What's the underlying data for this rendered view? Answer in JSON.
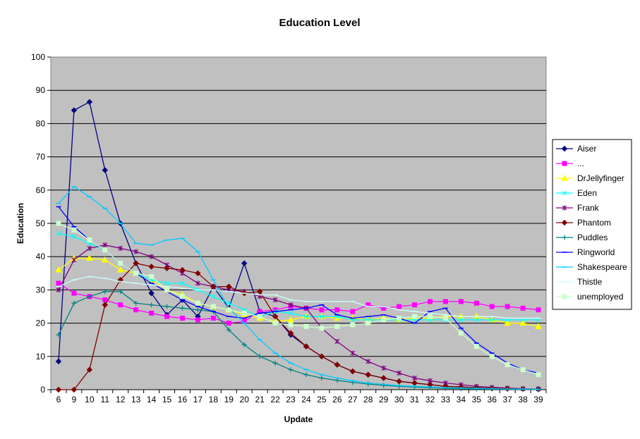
{
  "chart_data": {
    "type": "line",
    "title": "Education Level",
    "xlabel": "Update",
    "ylabel": "Education",
    "ylim": [
      0,
      100
    ],
    "yticks": [
      0,
      10,
      20,
      30,
      40,
      50,
      60,
      70,
      80,
      90,
      100
    ],
    "categories": [
      "6",
      "9",
      "10",
      "11",
      "12",
      "13",
      "14",
      "15",
      "16",
      "17",
      "18",
      "19",
      "20",
      "21",
      "22",
      "23",
      "24",
      "25",
      "26",
      "27",
      "28",
      "29",
      "30",
      "31",
      "32",
      "33",
      "34",
      "35",
      "36",
      "37",
      "38",
      "39"
    ],
    "grid": "horizontal",
    "legend_position": "right",
    "plot_background": "#c0c0c0",
    "series": [
      {
        "name": "Aiser",
        "color": "#000080",
        "marker": "diamond",
        "values": [
          8.5,
          84,
          86.5,
          66,
          50,
          38,
          29,
          22.5,
          27,
          22,
          31,
          24.5,
          38,
          23.5,
          22,
          16.5,
          13,
          10,
          7.5,
          5.5,
          4.5,
          3.5,
          2.5,
          2,
          1.5,
          1,
          0.8,
          0.6,
          0.4,
          0.3,
          0.2,
          0.2
        ]
      },
      {
        "name": "...",
        "color": "#ff00ff",
        "marker": "square",
        "values": [
          32,
          29,
          28,
          27,
          25.5,
          24,
          23,
          22,
          21.5,
          21,
          21.5,
          20,
          20.5,
          23.5,
          24,
          25,
          24.5,
          24,
          24,
          23.5,
          25.5,
          24.5,
          25,
          25.5,
          26.5,
          26.5,
          26.5,
          26,
          25,
          25,
          24.5,
          24
        ]
      },
      {
        "name": "DrJellyfinger",
        "color": "#ffff00",
        "marker": "triangle",
        "values": [
          36,
          39.5,
          39.5,
          39,
          36,
          35,
          33,
          30,
          28.5,
          26,
          25,
          24,
          22.5,
          21.5,
          20.5,
          21,
          22,
          22,
          21.5,
          21.5,
          21,
          21.5,
          21,
          21.5,
          21.5,
          22,
          22,
          22,
          21,
          20,
          20,
          19
        ]
      },
      {
        "name": "Eden",
        "color": "#00ffff",
        "marker": "x",
        "values": [
          47,
          46,
          44,
          42,
          38,
          35,
          33,
          32,
          32,
          30,
          28,
          26,
          24,
          22,
          23.5,
          23,
          22,
          22,
          22,
          21,
          21,
          21,
          21,
          21,
          21,
          21,
          21,
          21,
          21,
          21,
          21,
          21
        ]
      },
      {
        "name": "Frank",
        "color": "#800080",
        "marker": "star",
        "values": [
          30,
          39,
          42.5,
          43.5,
          42.5,
          41.5,
          40,
          37.5,
          35,
          32,
          31,
          30,
          29.5,
          28,
          27,
          25.5,
          24.5,
          18.5,
          14.5,
          11,
          8.5,
          6.5,
          5,
          3.5,
          2.7,
          2,
          1.5,
          1,
          0.7,
          0.5,
          0.3,
          0.2
        ]
      },
      {
        "name": "Phantom",
        "color": "#800000",
        "marker": "diamond",
        "values": [
          0,
          0,
          6,
          25.5,
          33,
          38,
          37,
          36.5,
          36,
          35,
          31,
          31,
          29,
          29.5,
          22,
          17,
          13,
          10,
          7.5,
          5.5,
          4.5,
          3.5,
          2.5,
          2,
          1.5,
          1,
          0.8,
          0.6,
          0.4,
          0.3,
          0.2,
          0.1
        ]
      },
      {
        "name": "Puddles",
        "color": "#008080",
        "marker": "plus",
        "values": [
          16.5,
          26,
          28,
          29.5,
          29.5,
          26,
          25.5,
          25,
          24.5,
          24,
          23.5,
          18,
          13.5,
          10,
          8,
          6,
          4.5,
          3.5,
          2.8,
          2.2,
          1.7,
          1.3,
          1,
          0.8,
          0.6,
          0.4,
          0.3,
          0.2,
          0.2,
          0.1,
          0.1,
          0.1
        ]
      },
      {
        "name": "Ringworld",
        "color": "#0000ff",
        "marker": "dash",
        "values": [
          55,
          49,
          45,
          42,
          38,
          35,
          32,
          29.5,
          27,
          25,
          23.5,
          22,
          21.5,
          23,
          23.5,
          24,
          24.5,
          25.5,
          22.5,
          21.5,
          22,
          22.5,
          21.5,
          20,
          23.5,
          24.5,
          18.5,
          14,
          11,
          8,
          6,
          5
        ]
      },
      {
        "name": "Shakespeare",
        "color": "#00ccff",
        "marker": "dash",
        "values": [
          56,
          61,
          58,
          54.5,
          50,
          44,
          43.5,
          45,
          45.5,
          41.5,
          33,
          24.5,
          20,
          15,
          11,
          8,
          6,
          4.5,
          3.5,
          2.7,
          2,
          1.6,
          1.2,
          1,
          0.8,
          0.6,
          0.5,
          0.4,
          0.3,
          0.2,
          0.2,
          0.1
        ]
      },
      {
        "name": "Thistle",
        "color": "#ccffff",
        "marker": "dash",
        "values": [
          31,
          33,
          34,
          33.5,
          32.5,
          32,
          31.5,
          31,
          30.5,
          30,
          30,
          29.5,
          29,
          28.5,
          28.5,
          27,
          26.5,
          26.5,
          26.5,
          26.5,
          25,
          25,
          24,
          23.5,
          23,
          22.5,
          22,
          22,
          22,
          21.5,
          21.5,
          21.5
        ]
      },
      {
        "name": "unemployed",
        "color": "#ccffcc",
        "marker": "square",
        "values": [
          50,
          48,
          45,
          42,
          38,
          35,
          34,
          30,
          28,
          26,
          25,
          24,
          23,
          22,
          20,
          19.5,
          19,
          18.5,
          19,
          19.5,
          20,
          21,
          21.5,
          22,
          22,
          21.5,
          17,
          13,
          10,
          7.5,
          6,
          4.5
        ]
      }
    ]
  }
}
